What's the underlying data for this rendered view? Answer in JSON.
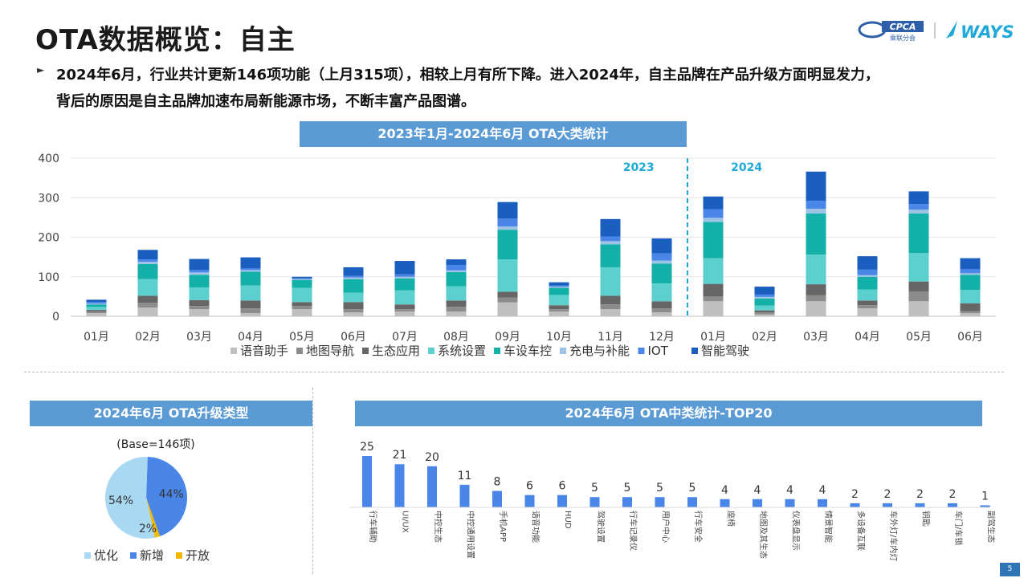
{
  "page": {
    "title": "OTA数据概览：自主",
    "page_number": "5",
    "logos": {
      "cpca_text": "CPCA",
      "cpca_sub": "乘联分会",
      "ways_text": "WAYS"
    },
    "bullets": [
      "2024年6月，行业共计更新146项功能（上月315项），相较上月有所下降。进入2024年，自主品牌在产品升级方面明显发力，",
      "背后的原因是自主品牌加速布局新能源市场，不断丰富产品图谱。"
    ],
    "colors": {
      "banner": "#5b9bd5",
      "accent": "#2e75b6",
      "year_label": "#1fa8d8"
    }
  },
  "chart_data": [
    {
      "type": "bar",
      "stacked": true,
      "title": "2023年1月-2024年6月 OTA大类统计",
      "categories": [
        "01月",
        "02月",
        "03月",
        "04月",
        "05月",
        "06月",
        "07月",
        "08月",
        "09月",
        "10月",
        "11月",
        "12月",
        "01月",
        "02月",
        "03月",
        "04月",
        "05月",
        "06月"
      ],
      "ylim": [
        0,
        400
      ],
      "yticks": [
        0,
        100,
        200,
        300,
        400
      ],
      "grid": true,
      "legend_position": "bottom",
      "annotations": [
        {
          "text": "2023",
          "category_index": 5
        },
        {
          "text": "2024",
          "category_index": 12
        }
      ],
      "divider_after_index": 11,
      "series": [
        {
          "name": "语音助手",
          "color": "#bfbfbf",
          "values": [
            8,
            22,
            18,
            8,
            18,
            10,
            12,
            12,
            35,
            12,
            18,
            10,
            38,
            5,
            38,
            20,
            38,
            8
          ]
        },
        {
          "name": "地图导航",
          "color": "#8c8c8c",
          "values": [
            4,
            12,
            8,
            12,
            8,
            8,
            6,
            12,
            12,
            6,
            12,
            10,
            12,
            5,
            15,
            8,
            25,
            5
          ]
        },
        {
          "name": "生态应用",
          "color": "#666666",
          "values": [
            4,
            18,
            15,
            20,
            10,
            18,
            12,
            16,
            15,
            10,
            22,
            18,
            32,
            5,
            28,
            12,
            25,
            20
          ]
        },
        {
          "name": "系统设置",
          "color": "#5ccfcf",
          "values": [
            8,
            42,
            32,
            38,
            36,
            24,
            36,
            36,
            82,
            26,
            72,
            45,
            65,
            12,
            75,
            28,
            72,
            34
          ]
        },
        {
          "name": "车设车控",
          "color": "#13b0a8",
          "values": [
            6,
            38,
            32,
            35,
            20,
            34,
            30,
            36,
            75,
            18,
            58,
            50,
            92,
            18,
            104,
            32,
            100,
            38
          ]
        },
        {
          "name": "充电与补能",
          "color": "#9dc3e6",
          "values": [
            2,
            6,
            6,
            4,
            2,
            4,
            4,
            4,
            8,
            3,
            8,
            8,
            10,
            4,
            12,
            4,
            10,
            4
          ]
        },
        {
          "name": "IOT",
          "color": "#4a86e8",
          "values": [
            4,
            6,
            6,
            4,
            2,
            4,
            6,
            14,
            20,
            3,
            12,
            18,
            22,
            6,
            20,
            14,
            14,
            10
          ]
        },
        {
          "name": "智能驾驶",
          "color": "#1a5fc0",
          "values": [
            6,
            24,
            28,
            28,
            4,
            22,
            34,
            14,
            42,
            8,
            44,
            38,
            32,
            20,
            74,
            34,
            32,
            28
          ]
        }
      ]
    },
    {
      "type": "pie",
      "title": "2024年6月 OTA升级类型",
      "subtitle": "(Base=146项)",
      "legend_position": "bottom",
      "slices": [
        {
          "name": "优化",
          "value": 54,
          "label": "54%",
          "color": "#a9d8f2"
        },
        {
          "name": "新增",
          "value": 44,
          "label": "44%",
          "color": "#4a86e8"
        },
        {
          "name": "开放",
          "value": 2,
          "label": "2%",
          "color": "#f5b800"
        }
      ]
    },
    {
      "type": "bar",
      "title": "2024年6月 OTA中类统计-TOP20",
      "color": "#4a86e8",
      "categories": [
        "行车辅助",
        "UI/UX",
        "中控生态",
        "中控通用设置",
        "手机APP",
        "语音功能",
        "HUD",
        "驾驶设置",
        "行车记录仪",
        "用户中心",
        "行车安全",
        "座椅",
        "地图及其生态",
        "仪表盘显示",
        "情景智能",
        "多设备互联",
        "车外灯/车内灯",
        "钥匙",
        "车门/车锁",
        "副驾生态"
      ],
      "values": [
        25,
        21,
        20,
        11,
        8,
        6,
        6,
        5,
        5,
        5,
        5,
        4,
        4,
        4,
        4,
        2,
        2,
        2,
        2,
        1
      ]
    }
  ]
}
